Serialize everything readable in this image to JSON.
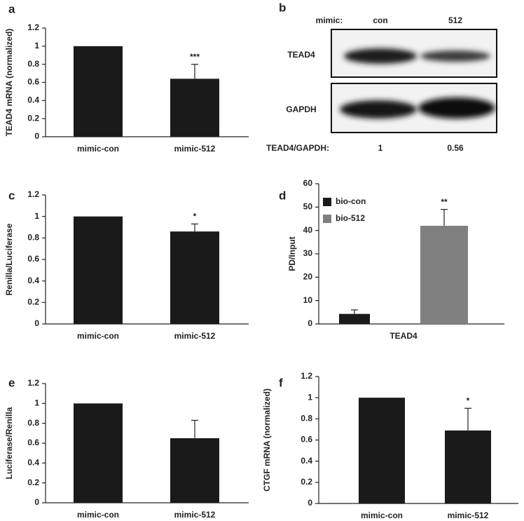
{
  "chart_data": [
    {
      "type": "bar",
      "panel": "a",
      "ylabel": "TEAD4 mRNA (normalized)",
      "categories": [
        "mimic-con",
        "mimic-512"
      ],
      "values": [
        1,
        0.64
      ],
      "errors": [
        null,
        0.16
      ],
      "color": "#1a1a1a",
      "ylim": [
        0,
        1.2
      ],
      "yticks": [
        0,
        0.2,
        0.4,
        0.6,
        0.8,
        1,
        1.2
      ],
      "annotations": [
        {
          "text": "***",
          "at": "mimic-512"
        }
      ]
    },
    {
      "type": "bar",
      "panel": "c",
      "ylabel": "Renilla/Luciferase",
      "categories": [
        "mimic-con",
        "mimic-512"
      ],
      "values": [
        1,
        0.86
      ],
      "errors": [
        null,
        0.07
      ],
      "color": "#1a1a1a",
      "ylim": [
        0,
        1.2
      ],
      "yticks": [
        0,
        0.2,
        0.4,
        0.6,
        0.8,
        1,
        1.2
      ],
      "annotations": [
        {
          "text": "*",
          "at": "mimic-512"
        }
      ]
    },
    {
      "type": "bar",
      "panel": "d",
      "ylabel": "PD/Input",
      "categories": [
        "TEAD4"
      ],
      "series": [
        {
          "name": "bio-con",
          "color": "#1a1a1a",
          "values": [
            4.3
          ],
          "errors": [
            1.7
          ]
        },
        {
          "name": "bio-512",
          "color": "#808080",
          "values": [
            42
          ],
          "errors": [
            7
          ]
        }
      ],
      "ylim": [
        0,
        60
      ],
      "yticks": [
        0,
        10,
        20,
        30,
        40,
        50,
        60
      ],
      "legend": "top-left",
      "annotations": [
        {
          "text": "**",
          "at": "bio-512"
        }
      ]
    },
    {
      "type": "bar",
      "panel": "e",
      "ylabel": "Luciferase/Renilla",
      "categories": [
        "mimic-con",
        "mimic-512"
      ],
      "values": [
        1,
        0.65
      ],
      "errors": [
        null,
        0.18
      ],
      "color": "#1a1a1a",
      "ylim": [
        0,
        1.2
      ],
      "yticks": [
        0,
        0.2,
        0.4,
        0.6,
        0.8,
        1,
        1.2
      ]
    },
    {
      "type": "bar",
      "panel": "f",
      "ylabel": "CTGF mRNA (normalized)",
      "categories": [
        "mimic-con",
        "mimic-512"
      ],
      "values": [
        1,
        0.69
      ],
      "errors": [
        null,
        0.21
      ],
      "color": "#1a1a1a",
      "ylim": [
        0,
        1.2
      ],
      "yticks": [
        0,
        0.2,
        0.4,
        0.6,
        0.8,
        1,
        1.2
      ],
      "annotations": [
        {
          "text": "*",
          "at": "mimic-512"
        }
      ]
    }
  ],
  "blot": {
    "panel": "b",
    "header_label": "mimic:",
    "lanes": [
      "con",
      "512"
    ],
    "rows": [
      "TEAD4",
      "GAPDH"
    ],
    "ratio_label": "TEAD4/GAPDH:",
    "ratios": [
      "1",
      "0.56"
    ]
  }
}
